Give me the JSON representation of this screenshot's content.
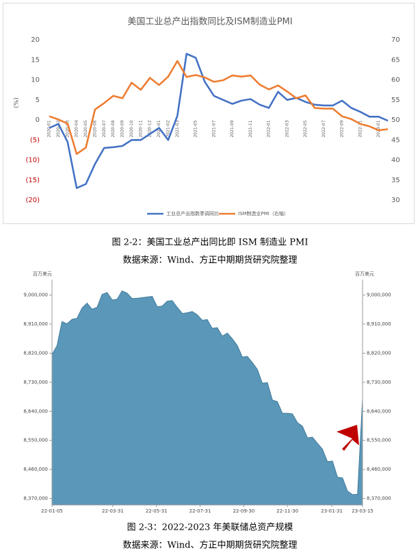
{
  "chart_data": [
    {
      "type": "line",
      "title": "美国工业总产出指数同比及ISM制造业PMI",
      "y_label": "(%)",
      "categories": [
        "2020-01",
        "2020-02",
        "2020-03",
        "2020-04",
        "2020-05",
        "2020-06",
        "2020-07",
        "2020-08",
        "2020-09",
        "2020-10",
        "2020-11",
        "2020-12",
        "2021-01",
        "2021-02",
        "2021-03",
        null,
        "2021-05",
        null,
        "2021-07",
        null,
        "2021-09",
        null,
        "2021-11",
        null,
        "2022-01",
        null,
        "2022-03",
        null,
        "2022-05",
        null,
        "2022-07",
        null,
        "2022-09",
        null,
        "2022-11",
        null,
        "2023-01",
        null
      ],
      "series": [
        {
          "name": "工业总产出指数季调同比",
          "color": "#4472c4",
          "values": [
            -2,
            -1,
            -5.5,
            -17,
            -16,
            -11,
            -7,
            -6.8,
            -6.5,
            -5,
            -5,
            -3.5,
            -2,
            -5,
            1,
            16.5,
            15.5,
            9.5,
            6,
            5,
            4,
            4.8,
            5.2,
            3.8,
            3,
            7,
            5,
            5.5,
            4.5,
            3.8,
            3.6,
            3.6,
            4.8,
            3,
            2,
            0.8,
            0.8,
            -0.2
          ]
        },
        {
          "name": "ISM制造业PMI（右轴）",
          "color": "#ed7d31",
          "axis": "y2",
          "values": [
            50.9,
            50.1,
            49.1,
            41.5,
            43.1,
            52.6,
            54.2,
            56,
            55.4,
            59.3,
            57.5,
            60.5,
            58.7,
            60.8,
            64.7,
            60.7,
            61.2,
            60.6,
            59.5,
            59.9,
            61.1,
            60.8,
            61.1,
            58.8,
            57.6,
            58.6,
            57.1,
            55.4,
            56.1,
            53,
            52.8,
            52.8,
            50.9,
            50.2,
            49,
            48.4,
            47.4,
            47.7
          ]
        }
      ],
      "ylim": [
        -20,
        20
      ],
      "yticks": [
        20,
        15,
        10,
        5,
        0,
        {
          "value": -5,
          "label": "(5)"
        },
        {
          "value": -10,
          "label": "(10)"
        },
        {
          "value": -15,
          "label": "(15)"
        },
        {
          "value": -20,
          "label": "(20)"
        }
      ],
      "negative_tick_color": "#c00000",
      "y2lim": [
        30,
        70
      ],
      "y2ticks": [
        30,
        35,
        40,
        45,
        50,
        55,
        60,
        65,
        70
      ],
      "legend": "bottom"
    },
    {
      "type": "area",
      "y_unit_label": "百万美元",
      "color": "#5b97b8",
      "line_color": "#3f7b9c",
      "x": [
        "22-01-05",
        "22-01-12",
        "22-01-19",
        "22-01-26",
        "22-02-02",
        "22-02-09",
        "22-02-16",
        "22-02-23",
        "22-03-02",
        "22-03-09",
        "22-03-16",
        "22-03-23",
        "22-03-30",
        "22-04-06",
        "22-04-13",
        "22-04-20",
        "22-04-27",
        "22-05-04",
        "22-05-11",
        "22-05-18",
        "22-05-25",
        "22-06-01",
        "22-06-08",
        "22-06-15",
        "22-06-22",
        "22-06-29",
        "22-07-06",
        "22-07-13",
        "22-07-20",
        "22-07-27",
        "22-08-03",
        "22-08-10",
        "22-08-17",
        "22-08-24",
        "22-08-31",
        "22-09-07",
        "22-09-14",
        "22-09-21",
        "22-09-28",
        "22-10-05",
        "22-10-12",
        "22-10-19",
        "22-10-26",
        "22-11-02",
        "22-11-09",
        "22-11-16",
        "22-11-23",
        "22-11-30",
        "22-12-07",
        "22-12-14",
        "22-12-21",
        "22-12-28",
        "23-01-04",
        "23-01-11",
        "23-01-18",
        "23-01-25",
        "23-02-01",
        "23-02-08",
        "23-02-15",
        "23-02-22",
        "23-03-01",
        "23-03-08",
        "23-03-15"
      ],
      "values": [
        8816000,
        8843000,
        8918000,
        8911000,
        8925000,
        8928000,
        8960000,
        8975000,
        8956000,
        8962000,
        9002000,
        9008000,
        8985000,
        8987000,
        9013000,
        9006000,
        8989000,
        8990000,
        8992000,
        8994000,
        8996000,
        8964000,
        8966000,
        8981000,
        8983000,
        8962000,
        8943000,
        8945000,
        8949000,
        8939000,
        8922000,
        8924000,
        8897000,
        8899000,
        8873000,
        8882000,
        8865000,
        8844000,
        8808000,
        8810000,
        8791000,
        8770000,
        8727000,
        8729000,
        8675000,
        8670000,
        8634000,
        8634000,
        8632000,
        8605000,
        8594000,
        8558000,
        8560000,
        8541000,
        8523000,
        8484000,
        8486000,
        8436000,
        8434000,
        8393000,
        8382000,
        8383000,
        8680000
      ],
      "xlim": [
        "22-01-05",
        "23-03-15"
      ],
      "xticks": [
        "22-01-05",
        "22-03-31",
        "22-05-31",
        "22-07-31",
        "22-09-30",
        "22-11-30",
        "23-01-31",
        "23-03-15"
      ],
      "ylim": [
        8350000,
        9048000
      ],
      "yticks": [
        {
          "value": 9000000,
          "label": "9,000,000"
        },
        {
          "value": 8910000,
          "label": "8,910,000"
        },
        {
          "value": 8820000,
          "label": "8,820,000"
        },
        {
          "value": 8730000,
          "label": "8,730,000"
        },
        {
          "value": 8640000,
          "label": "8,640,000"
        },
        {
          "value": 8550000,
          "label": "8,550,000"
        },
        {
          "value": 8460000,
          "label": "8,460,000"
        },
        {
          "value": 8370000,
          "label": "8,370,000"
        }
      ],
      "right_axis_mirror": true
    }
  ],
  "captions": [
    {
      "title": "图 2-2：美国工业总产出同比即 ISM 制造业 PMI",
      "source": "数据来源：Wind、方正中期期货研究院整理"
    },
    {
      "title": "图 2-3：2022-2023 年美联储总资产规模",
      "source": "数据来源：Wind、方正中期期货研究院整理"
    }
  ]
}
